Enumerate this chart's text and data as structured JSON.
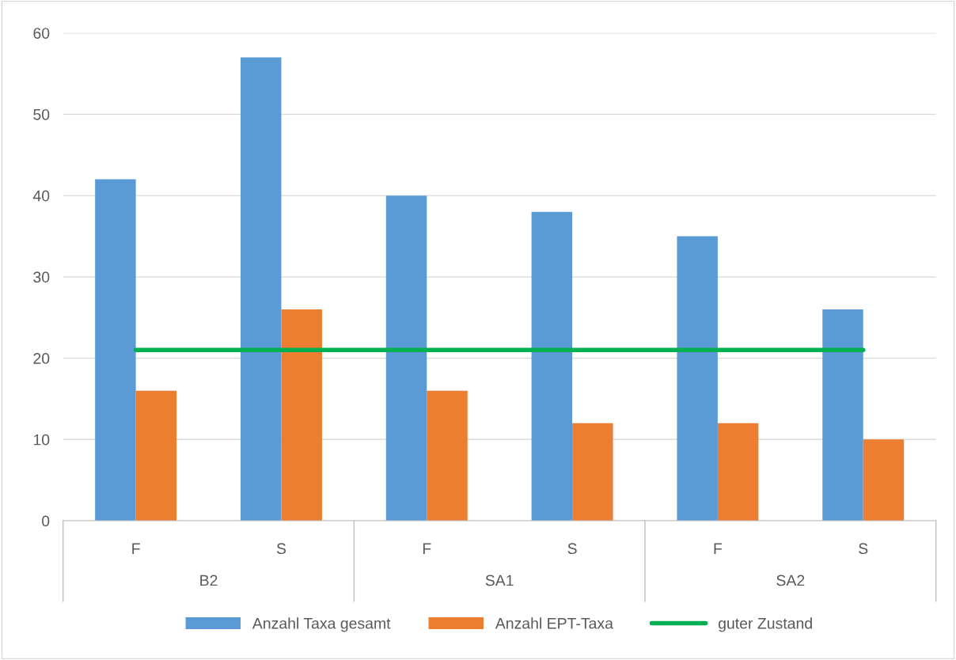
{
  "chart_data": {
    "type": "bar",
    "categories": [
      "F",
      "S",
      "F",
      "S",
      "F",
      "S"
    ],
    "series": [
      {
        "name": "Anzahl Taxa gesamt",
        "color": "#5b9bd5",
        "values": [
          42,
          57,
          40,
          38,
          35,
          26
        ]
      },
      {
        "name": "Anzahl EPT-Taxa",
        "color": "#ed7d31",
        "values": [
          16,
          26,
          16,
          12,
          12,
          10
        ]
      },
      {
        "name": "guter Zustand",
        "type": "line",
        "color": "#00b050",
        "values": [
          21,
          21,
          21,
          21,
          21,
          21
        ]
      }
    ],
    "annotations": [
      "B2",
      "SA1",
      "SA2"
    ],
    "ylim": [
      0,
      60
    ],
    "yticks": [
      0,
      10,
      20,
      30,
      40,
      50,
      60
    ],
    "grid": "y",
    "legend": "bottom"
  }
}
